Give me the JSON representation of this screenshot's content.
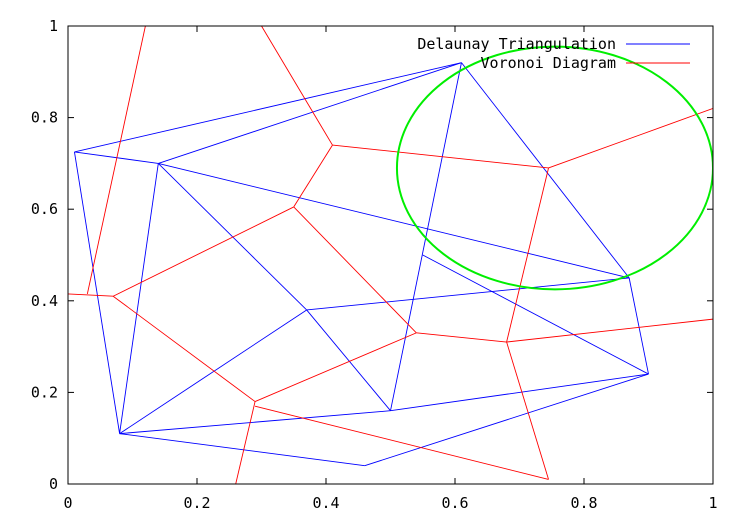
{
  "chart_data": {
    "type": "line",
    "title": "",
    "xlabel": "",
    "ylabel": "",
    "xlim": [
      0,
      1
    ],
    "ylim": [
      0,
      1
    ],
    "x_ticks": [
      "0",
      "0.2",
      "0.4",
      "0.6",
      "0.8",
      "1"
    ],
    "y_ticks": [
      "0",
      "0.2",
      "0.4",
      "0.6",
      "0.8",
      "1"
    ],
    "grid": false,
    "legend_position": "top-right",
    "legend": [
      {
        "label": "Delaunay Triangulation",
        "color": "#0000ff"
      },
      {
        "label": "Voronoi Diagram",
        "color": "#ff0000"
      }
    ],
    "series": [
      {
        "name": "Delaunay Triangulation",
        "color": "#0000ff",
        "segments": [
          [
            [
              0.01,
              0.725
            ],
            [
              0.61,
              0.92
            ]
          ],
          [
            [
              0.01,
              0.725
            ],
            [
              0.14,
              0.7
            ]
          ],
          [
            [
              0.01,
              0.725
            ],
            [
              0.08,
              0.11
            ]
          ],
          [
            [
              0.14,
              0.7
            ],
            [
              0.61,
              0.92
            ]
          ],
          [
            [
              0.14,
              0.7
            ],
            [
              0.08,
              0.11
            ]
          ],
          [
            [
              0.14,
              0.7
            ],
            [
              0.37,
              0.38
            ]
          ],
          [
            [
              0.14,
              0.7
            ],
            [
              0.87,
              0.45
            ]
          ],
          [
            [
              0.61,
              0.92
            ],
            [
              0.5,
              0.16
            ]
          ],
          [
            [
              0.61,
              0.92
            ],
            [
              0.87,
              0.45
            ]
          ],
          [
            [
              0.08,
              0.11
            ],
            [
              0.37,
              0.38
            ]
          ],
          [
            [
              0.37,
              0.38
            ],
            [
              0.87,
              0.45
            ]
          ],
          [
            [
              0.37,
              0.38
            ],
            [
              0.5,
              0.16
            ]
          ],
          [
            [
              0.08,
              0.11
            ],
            [
              0.5,
              0.16
            ]
          ],
          [
            [
              0.08,
              0.11
            ],
            [
              0.46,
              0.04
            ]
          ],
          [
            [
              0.46,
              0.04
            ],
            [
              0.9,
              0.24
            ]
          ],
          [
            [
              0.5,
              0.16
            ],
            [
              0.9,
              0.24
            ]
          ],
          [
            [
              0.87,
              0.45
            ],
            [
              0.9,
              0.24
            ]
          ],
          [
            [
              0.55,
              0.5
            ],
            [
              0.9,
              0.24
            ]
          ]
        ]
      },
      {
        "name": "Voronoi Diagram",
        "color": "#ff0000",
        "segments": [
          [
            [
              0.12,
              1.0
            ],
            [
              0.03,
              0.415
            ]
          ],
          [
            [
              0.0,
              0.415
            ],
            [
              0.07,
              0.41
            ]
          ],
          [
            [
              0.07,
              0.41
            ],
            [
              0.35,
              0.605
            ]
          ],
          [
            [
              0.07,
              0.41
            ],
            [
              0.29,
              0.18
            ]
          ],
          [
            [
              0.35,
              0.605
            ],
            [
              0.41,
              0.74
            ]
          ],
          [
            [
              0.35,
              0.605
            ],
            [
              0.54,
              0.33
            ]
          ],
          [
            [
              0.29,
              0.18
            ],
            [
              0.54,
              0.33
            ]
          ],
          [
            [
              0.29,
              0.18
            ],
            [
              0.26,
              0.0
            ]
          ],
          [
            [
              0.29,
              0.17
            ],
            [
              0.745,
              0.01
            ]
          ],
          [
            [
              0.3,
              1.0
            ],
            [
              0.41,
              0.74
            ]
          ],
          [
            [
              0.41,
              0.74
            ],
            [
              0.745,
              0.69
            ]
          ],
          [
            [
              0.745,
              0.69
            ],
            [
              1.0,
              0.82
            ]
          ],
          [
            [
              0.745,
              0.69
            ],
            [
              0.68,
              0.31
            ]
          ],
          [
            [
              0.54,
              0.33
            ],
            [
              0.68,
              0.31
            ]
          ],
          [
            [
              0.68,
              0.31
            ],
            [
              1.0,
              0.36
            ]
          ],
          [
            [
              0.68,
              0.31
            ],
            [
              0.745,
              0.01
            ]
          ]
        ]
      },
      {
        "name": "",
        "color": "#00ee00",
        "shape": "ellipse",
        "center": [
          0.755,
          0.69
        ],
        "radius_x": 0.245,
        "radius_y": 0.265
      }
    ]
  }
}
